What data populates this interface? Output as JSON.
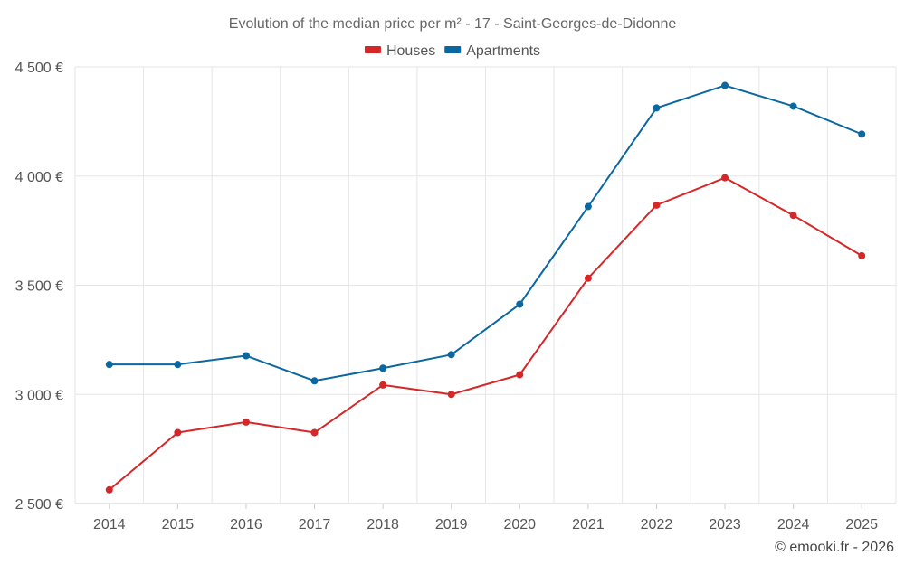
{
  "chart_data": {
    "type": "line",
    "title": "Evolution of the median price per m² - 17 - Saint-Georges-de-Didonne",
    "categories": [
      "2014",
      "2015",
      "2016",
      "2017",
      "2018",
      "2019",
      "2020",
      "2021",
      "2022",
      "2023",
      "2024",
      "2025"
    ],
    "series": [
      {
        "name": "Houses",
        "color": "#d62728",
        "values": [
          2563,
          2825,
          2873,
          2825,
          3043,
          3000,
          3090,
          3532,
          3867,
          3992,
          3820,
          3635
        ]
      },
      {
        "name": "Apartments",
        "color": "#0b67a0",
        "values": [
          3137,
          3137,
          3177,
          3062,
          3120,
          3182,
          3413,
          3860,
          4312,
          4415,
          4320,
          4192
        ]
      }
    ],
    "ylim": [
      2500,
      4500
    ],
    "yticks": [
      2500,
      3000,
      3500,
      4000,
      4500
    ],
    "ytick_labels": [
      "2 500 €",
      "3 000 €",
      "3 500 €",
      "4 000 €",
      "4 500 €"
    ],
    "xlabel": "",
    "ylabel": "",
    "grid": true,
    "legend": "top-center"
  },
  "credit": "© emooki.fr - 2026"
}
